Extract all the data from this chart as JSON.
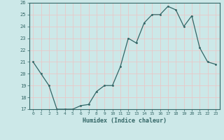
{
  "x": [
    0,
    1,
    2,
    3,
    4,
    5,
    6,
    7,
    8,
    9,
    10,
    11,
    12,
    13,
    14,
    15,
    16,
    17,
    18,
    19,
    20,
    21,
    22,
    23
  ],
  "y": [
    21,
    20,
    19,
    17,
    17,
    17,
    17.3,
    17.4,
    18.5,
    19,
    19,
    20.6,
    23,
    22.6,
    24.3,
    25,
    25,
    25.7,
    25.4,
    24,
    24.9,
    22.2,
    21,
    20.8
  ],
  "xlabel": "Humidex (Indice chaleur)",
  "ylim": [
    17,
    26
  ],
  "yticks": [
    17,
    18,
    19,
    20,
    21,
    22,
    23,
    24,
    25,
    26
  ],
  "xticks": [
    0,
    1,
    2,
    3,
    4,
    5,
    6,
    7,
    8,
    9,
    10,
    11,
    12,
    13,
    14,
    15,
    16,
    17,
    18,
    19,
    20,
    21,
    22,
    23
  ],
  "line_color": "#336666",
  "marker_color": "#336666",
  "bg_color": "#cce8e8",
  "grid_color": "#e8c8c8",
  "border_color": "#336666",
  "label_color": "#336666",
  "tick_color": "#336666"
}
